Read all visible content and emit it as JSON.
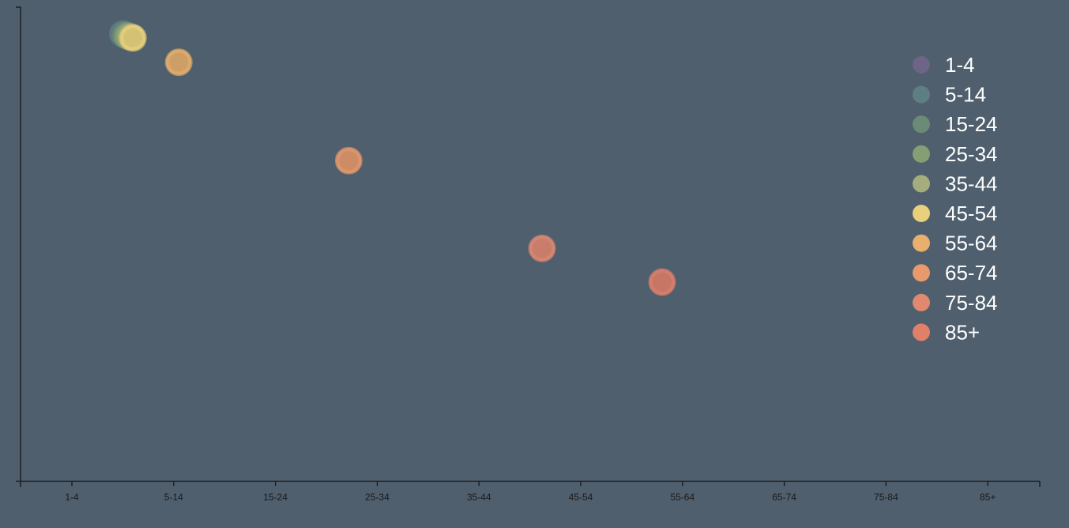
{
  "chart_data": {
    "type": "scatter",
    "x_axis": {
      "type": "category",
      "tick_labels": [
        "1-4",
        "5-14",
        "15-24",
        "25-34",
        "35-44",
        "45-54",
        "55-64",
        "65-74",
        "75-84",
        "85+"
      ]
    },
    "y_axis": {
      "tick_labels": [],
      "ylim": [
        0,
        100
      ]
    },
    "legend": {
      "position": "top-right",
      "items": [
        {
          "label": "1-4",
          "color": "#6e6488"
        },
        {
          "label": "5-14",
          "color": "#5d7f82"
        },
        {
          "label": "15-24",
          "color": "#6b8b76"
        },
        {
          "label": "25-34",
          "color": "#869f72"
        },
        {
          "label": "35-44",
          "color": "#a5ad7c"
        },
        {
          "label": "45-54",
          "color": "#e8d07c"
        },
        {
          "label": "55-64",
          "color": "#e8b06c"
        },
        {
          "label": "65-74",
          "color": "#e89a6c"
        },
        {
          "label": "75-84",
          "color": "#e08870"
        },
        {
          "label": "85+",
          "color": "#e0806a"
        }
      ]
    },
    "points": [
      {
        "x": 0.5,
        "y": 99.5,
        "group": "5-14"
      },
      {
        "x": 0.53,
        "y": 99.2,
        "group": "15-24"
      },
      {
        "x": 0.55,
        "y": 99.0,
        "group": "25-34"
      },
      {
        "x": 0.58,
        "y": 98.8,
        "group": "35-44"
      },
      {
        "x": 0.6,
        "y": 98.6,
        "group": "45-54"
      },
      {
        "x": 1.05,
        "y": 93.2,
        "group": "55-64"
      },
      {
        "x": 2.72,
        "y": 71.3,
        "group": "65-74"
      },
      {
        "x": 4.62,
        "y": 51.8,
        "group": "75-84"
      },
      {
        "x": 5.8,
        "y": 44.3,
        "group": "85+"
      }
    ]
  }
}
